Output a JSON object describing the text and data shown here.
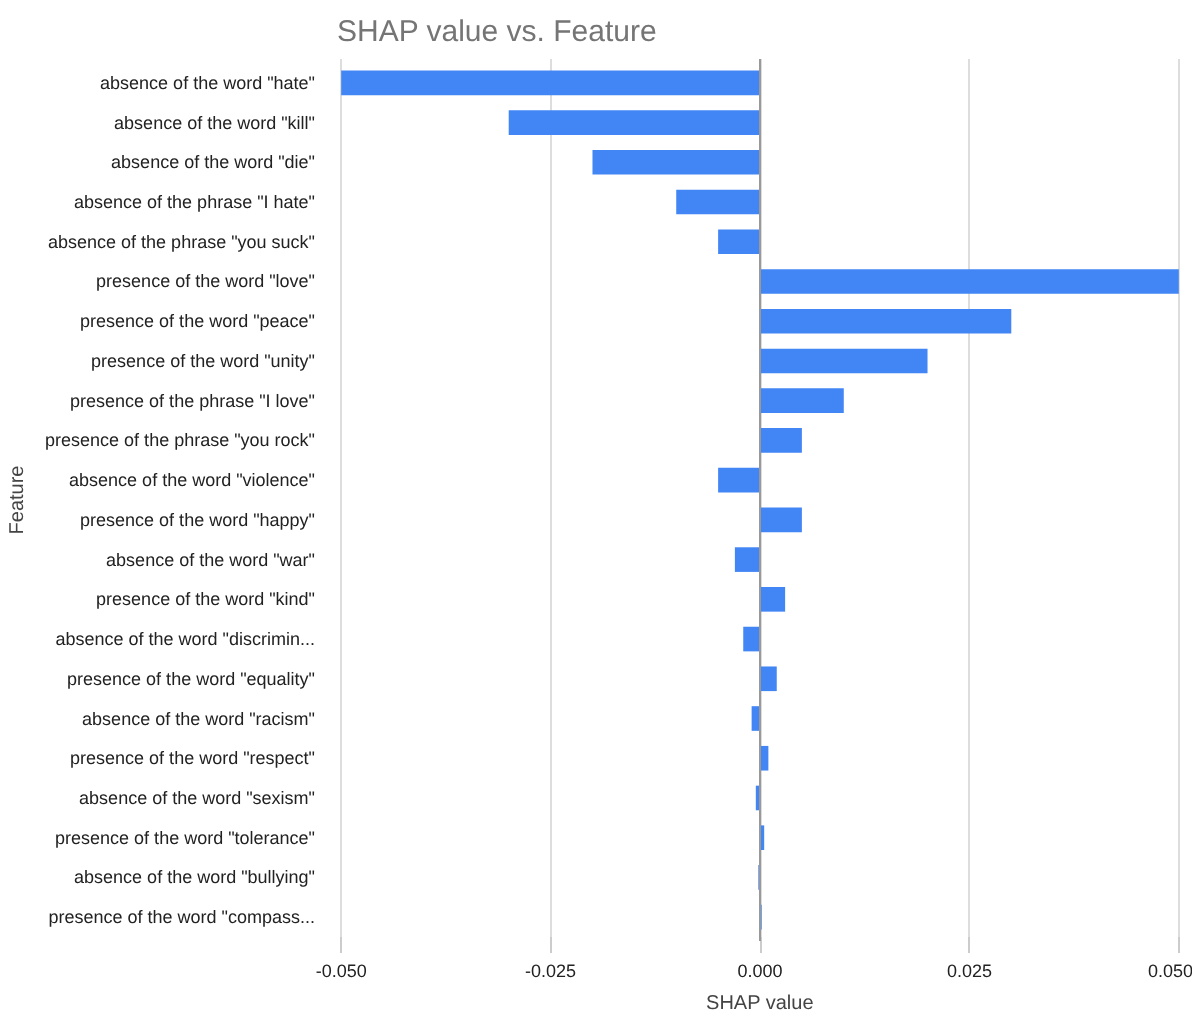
{
  "chart_data": {
    "type": "bar",
    "orientation": "horizontal",
    "title": "SHAP value vs. Feature",
    "xlabel": "SHAP value",
    "ylabel": "Feature",
    "categories": [
      "absence of the word \"hate\"",
      "absence of the word \"kill\"",
      "absence of the word \"die\"",
      "absence of the phrase \"I hate\"",
      "absence of the phrase \"you suck\"",
      "presence of the word \"love\"",
      "presence of the word \"peace\"",
      "presence of the word \"unity\"",
      "presence of the phrase \"I love\"",
      "presence of the phrase \"you rock\"",
      "absence of the word \"violence\"",
      "presence of the word \"happy\"",
      "absence of the word \"war\"",
      "presence of the word \"kind\"",
      "absence of the word \"discrimin...",
      "presence of the word \"equality\"",
      "absence of the word \"racism\"",
      "presence of the word \"respect\"",
      "absence of the word \"sexism\"",
      "presence of the word \"tolerance\"",
      "absence of the word \"bullying\"",
      "presence of the word \"compass..."
    ],
    "values": [
      -0.05,
      -0.03,
      -0.02,
      -0.01,
      -0.005,
      0.05,
      0.03,
      0.02,
      0.01,
      0.005,
      -0.005,
      0.005,
      -0.003,
      0.003,
      -0.002,
      0.002,
      -0.001,
      0.001,
      -0.0005,
      0.0005,
      -0.0002,
      0.0002
    ],
    "color": "#4285f4",
    "xlim": [
      -0.05,
      0.05
    ],
    "xticks": [
      {
        "value": -0.05,
        "label": "-0.050"
      },
      {
        "value": -0.025,
        "label": "-0.025"
      },
      {
        "value": 0,
        "label": "0.000"
      },
      {
        "value": 0.025,
        "label": "0.025"
      },
      {
        "value": 0.05,
        "label": "0.050"
      }
    ],
    "grid": "x"
  }
}
